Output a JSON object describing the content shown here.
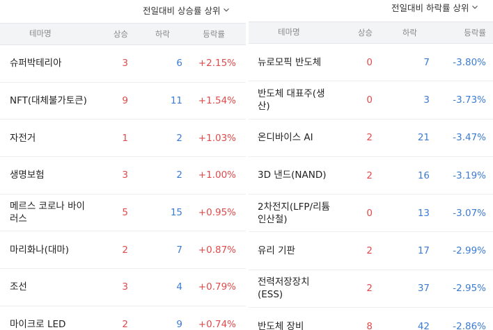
{
  "rising": {
    "toggle_label": "전일대비 상승률 상위",
    "headers": {
      "name": "테마명",
      "up": "상승",
      "down": "하락",
      "rate": "등락률"
    },
    "rows": [
      {
        "name": "슈퍼박테리아",
        "up": "3",
        "down": "6",
        "rate": "+2.15%"
      },
      {
        "name": "NFT(대체불가토큰)",
        "up": "9",
        "down": "11",
        "rate": "+1.54%"
      },
      {
        "name": "자전거",
        "up": "1",
        "down": "2",
        "rate": "+1.03%"
      },
      {
        "name": "생명보험",
        "up": "3",
        "down": "2",
        "rate": "+1.00%"
      },
      {
        "name": "메르스 코로나 바이러스",
        "up": "5",
        "down": "15",
        "rate": "+0.95%"
      },
      {
        "name": "마리화나(대마)",
        "up": "2",
        "down": "7",
        "rate": "+0.87%"
      },
      {
        "name": "조선",
        "up": "3",
        "down": "4",
        "rate": "+0.79%"
      },
      {
        "name": "마이크로 LED",
        "up": "2",
        "down": "9",
        "rate": "+0.74%"
      }
    ]
  },
  "falling": {
    "toggle_label": "전일대비 하락률 상위",
    "headers": {
      "name": "테마명",
      "up": "상승",
      "down": "하락",
      "rate": "등락률"
    },
    "rows": [
      {
        "name": "뉴로모픽 반도체",
        "up": "0",
        "down": "7",
        "rate": "-3.80%"
      },
      {
        "name": "반도체 대표주(생산)",
        "up": "0",
        "down": "3",
        "rate": "-3.73%"
      },
      {
        "name": "온디바이스 AI",
        "up": "2",
        "down": "21",
        "rate": "-3.47%"
      },
      {
        "name": "3D 낸드(NAND)",
        "up": "2",
        "down": "16",
        "rate": "-3.19%"
      },
      {
        "name": "2차전지(LFP/리튬인산철)",
        "up": "0",
        "down": "13",
        "rate": "-3.07%"
      },
      {
        "name": "유리 기판",
        "up": "2",
        "down": "17",
        "rate": "-2.99%"
      },
      {
        "name": "전력저장장치(ESS)",
        "up": "2",
        "down": "37",
        "rate": "-2.95%"
      },
      {
        "name": "반도체 장비",
        "up": "8",
        "down": "42",
        "rate": "-2.86%"
      }
    ]
  },
  "colors": {
    "up": "#e04a4a",
    "down": "#3b7bd4",
    "header_bg": "#f3f4f6"
  },
  "icons": {
    "toggle": "chevron-down-icon"
  }
}
